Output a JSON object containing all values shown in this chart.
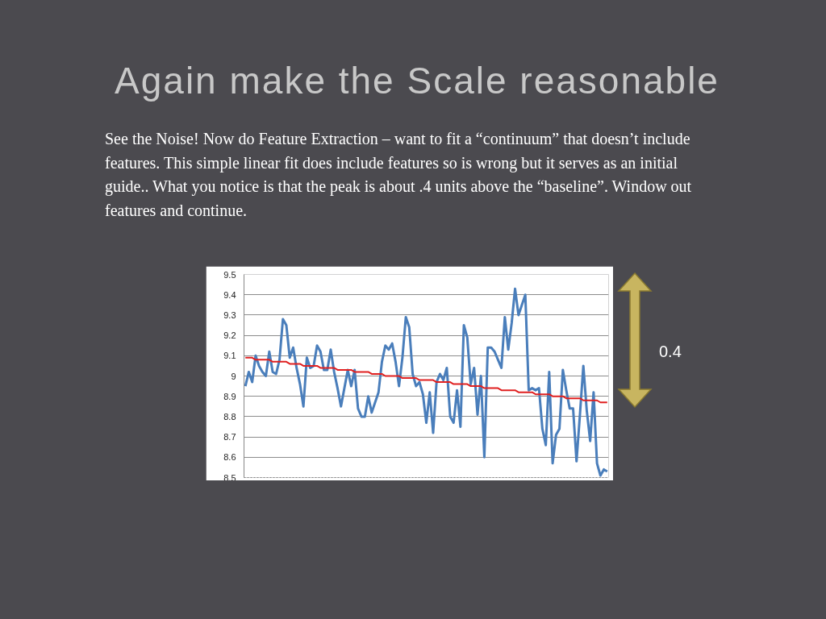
{
  "chart_data": {
    "type": "line",
    "title": "Again make the Scale reasonable",
    "annotations": [
      "See the Noise!  Now do Feature Extraction – want to fit a “continuum” that doesn’t include features.  This simple linear fit does include features so is wrong but it serves as an initial guide.. What you notice is that the peak is about .4 units above the “baseline”. Window out features and continue.",
      "0.4"
    ],
    "categories": [
      null,
      null,
      null,
      null,
      null,
      null,
      null,
      null,
      null,
      null,
      null,
      null,
      null,
      null,
      null,
      null,
      null,
      null,
      null,
      null,
      null,
      null,
      null,
      null,
      null,
      null,
      null,
      null,
      null,
      null,
      null,
      null,
      null,
      null,
      null,
      null,
      null,
      null,
      null,
      null,
      null,
      null,
      null,
      null,
      null,
      null,
      null,
      null,
      null,
      null,
      null,
      null,
      null,
      null,
      null,
      null,
      null,
      null,
      null,
      null,
      null,
      null,
      null,
      null,
      null,
      null,
      null,
      null,
      null,
      null,
      null,
      null,
      null,
      null,
      null,
      null,
      null,
      null,
      null,
      null,
      null,
      null,
      null,
      null,
      null,
      null,
      null,
      null,
      null,
      null,
      null,
      null,
      null,
      null,
      null,
      null,
      null,
      null,
      null,
      null,
      null,
      null,
      null,
      null,
      null,
      null,
      null
    ],
    "series": [
      {
        "color": "#4a7ebb",
        "values": [
          8.95,
          9.02,
          8.97,
          9.1,
          9.05,
          9.02,
          9.0,
          9.12,
          9.02,
          9.01,
          9.08,
          9.28,
          9.25,
          9.09,
          9.14,
          9.04,
          8.96,
          8.85,
          9.09,
          9.04,
          9.05,
          9.15,
          9.12,
          9.03,
          9.03,
          9.13,
          9.02,
          8.94,
          8.85,
          8.94,
          9.03,
          8.95,
          9.03,
          8.84,
          8.8,
          8.8,
          8.9,
          8.82,
          8.87,
          8.92,
          9.07,
          9.15,
          9.13,
          9.16,
          9.07,
          8.95,
          9.09,
          9.29,
          9.24,
          9.01,
          8.95,
          8.97,
          8.91,
          8.77,
          8.92,
          8.72,
          8.97,
          9.01,
          8.98,
          9.04,
          8.8,
          8.77,
          8.93,
          8.75,
          9.25,
          9.19,
          8.96,
          9.04,
          8.81,
          9.0,
          8.6,
          9.14,
          9.14,
          9.12,
          9.08,
          9.04,
          9.29,
          9.13,
          9.26,
          9.43,
          9.3,
          9.35,
          9.4,
          8.93,
          8.94,
          8.93,
          8.94,
          8.74,
          8.66,
          9.02,
          8.57,
          8.71,
          8.74,
          9.03,
          8.93,
          8.84,
          8.84,
          8.58,
          8.81,
          9.05,
          8.83,
          8.68,
          8.92,
          8.57,
          8.51,
          8.54,
          8.53
        ]
      },
      {
        "color": "#e02020",
        "values": [
          9.09,
          9.09,
          9.09,
          9.08,
          9.08,
          9.08,
          9.08,
          9.08,
          9.07,
          9.07,
          9.07,
          9.07,
          9.07,
          9.06,
          9.06,
          9.06,
          9.06,
          9.05,
          9.05,
          9.05,
          9.05,
          9.05,
          9.04,
          9.04,
          9.04,
          9.04,
          9.04,
          9.03,
          9.03,
          9.03,
          9.03,
          9.03,
          9.02,
          9.02,
          9.02,
          9.02,
          9.02,
          9.01,
          9.01,
          9.01,
          9.01,
          9.0,
          9.0,
          9.0,
          9.0,
          9.0,
          8.99,
          8.99,
          8.99,
          8.99,
          8.99,
          8.98,
          8.98,
          8.98,
          8.98,
          8.98,
          8.97,
          8.97,
          8.97,
          8.97,
          8.97,
          8.96,
          8.96,
          8.96,
          8.96,
          8.96,
          8.95,
          8.95,
          8.95,
          8.95,
          8.94,
          8.94,
          8.94,
          8.94,
          8.94,
          8.93,
          8.93,
          8.93,
          8.93,
          8.93,
          8.92,
          8.92,
          8.92,
          8.92,
          8.92,
          8.91,
          8.91,
          8.91,
          8.91,
          8.91,
          8.9,
          8.9,
          8.9,
          8.9,
          8.89,
          8.89,
          8.89,
          8.89,
          8.89,
          8.88,
          8.88,
          8.88,
          8.88,
          8.88,
          8.87,
          8.87,
          8.87
        ]
      }
    ],
    "ylim": [
      8.5,
      9.5
    ],
    "yticks": [
      8.5,
      8.6,
      8.7,
      8.8,
      8.9,
      9,
      9.1,
      9.2,
      9.3,
      9.4,
      9.5
    ],
    "grid": "y",
    "tick_labels": "y",
    "marker": "none",
    "line_style": "solid"
  }
}
